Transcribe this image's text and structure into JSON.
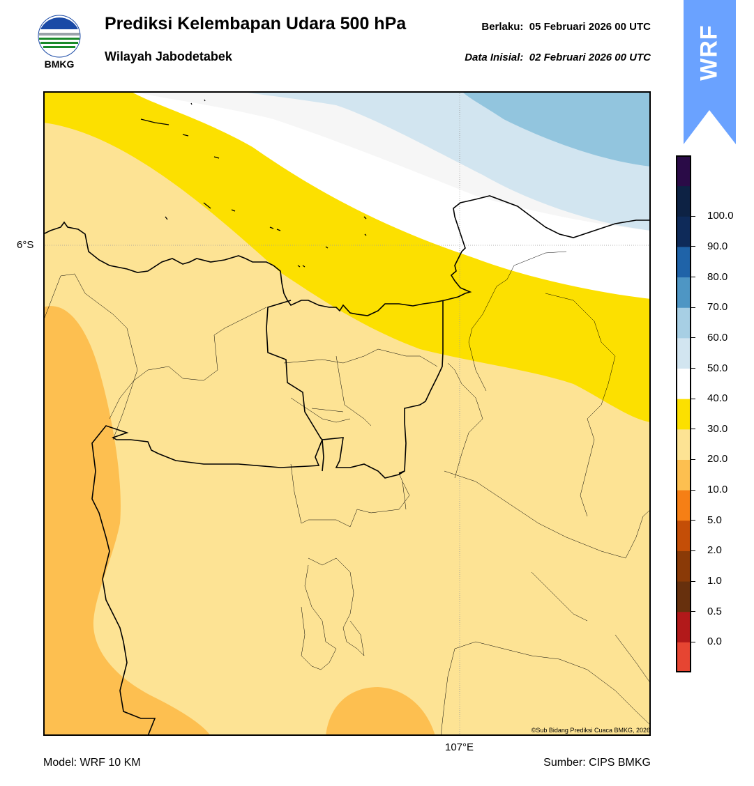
{
  "header": {
    "title": "Prediksi Kelembapan Udara 500 hPa",
    "subtitle": "Wilayah Jabodetabek",
    "valid_label": "Berlaku:",
    "valid_time": "05 Februari 2026 00 UTC",
    "init_label": "Data Inisial:",
    "init_time": "02 Februari 2026 00 UTC"
  },
  "logo": {
    "text": "BMKG",
    "icon": "bmkg-logo-icon"
  },
  "badge": {
    "text": "WRF",
    "color": "#6aa2ff"
  },
  "map": {
    "lat_label": "6°S",
    "lon_label": "107°E",
    "credit": "©Sub Bidang Prediksi Cuaca BMKG, 2026",
    "colors": {
      "band_10_20": "#fdbf50",
      "band_20_30": "#fde394",
      "band_30_40": "#fce000",
      "band_40_50": "#ffffff",
      "band_50_60": "#f6f6f6",
      "band_60_70": "#d2e5f0",
      "band_70_80": "#92c5de"
    }
  },
  "colorbar": {
    "labels": [
      "100.0",
      "90.0",
      "80.0",
      "70.0",
      "60.0",
      "50.0",
      "40.0",
      "30.0",
      "20.0",
      "10.0",
      "5.0",
      "2.0",
      "1.0",
      "0.5",
      "0.0"
    ],
    "colors": [
      "#e64532",
      "#b2191a",
      "#67300d",
      "#8a3a07",
      "#c44e07",
      "#f67f15",
      "#fdbf50",
      "#fde394",
      "#fce000",
      "#ffffff",
      "#d2e5f0",
      "#a7cfe4",
      "#4e96c4",
      "#1f63a8",
      "#0e2a59",
      "#0d2244",
      "#2a0b47"
    ]
  },
  "footer": {
    "model": "Model: WRF 10 KM",
    "source": "Sumber: CIPS BMKG"
  }
}
